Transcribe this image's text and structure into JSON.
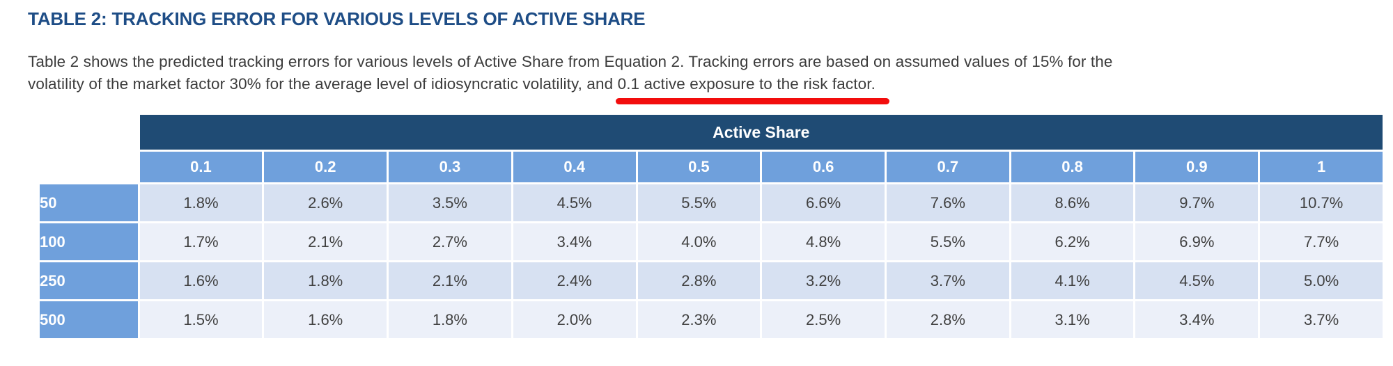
{
  "title": "TABLE 2: TRACKING ERROR FOR VARIOUS LEVELS OF ACTIVE SHARE",
  "paragraph": {
    "line1": "Table 2 shows the predicted tracking errors for various levels of Active Share from Equation 2. Tracking errors are based on assumed values of 15% for the",
    "line2_prefix": "volatility of the market factor 30% for the average level of idiosyncratic volatility, and ",
    "line2_underlined": "0.1 active exposure to the risk factor."
  },
  "annotation": {
    "type": "hand-drawn red underline",
    "color": "#f20d0d"
  },
  "table": {
    "group_header": "Active Share",
    "column_headers": [
      "0.1",
      "0.2",
      "0.3",
      "0.4",
      "0.5",
      "0.6",
      "0.7",
      "0.8",
      "0.9",
      "1"
    ],
    "rows": [
      {
        "label": "50",
        "values": [
          "1.8%",
          "2.6%",
          "3.5%",
          "4.5%",
          "5.5%",
          "6.6%",
          "7.6%",
          "8.6%",
          "9.7%",
          "10.7%"
        ]
      },
      {
        "label": "100",
        "values": [
          "1.7%",
          "2.1%",
          "2.7%",
          "3.4%",
          "4.0%",
          "4.8%",
          "5.5%",
          "6.2%",
          "6.9%",
          "7.7%"
        ]
      },
      {
        "label": "250",
        "values": [
          "1.6%",
          "1.8%",
          "2.1%",
          "2.4%",
          "2.8%",
          "3.2%",
          "3.7%",
          "4.1%",
          "4.5%",
          "5.0%"
        ]
      },
      {
        "label": "500",
        "values": [
          "1.5%",
          "1.6%",
          "1.8%",
          "2.0%",
          "2.3%",
          "2.5%",
          "2.8%",
          "3.1%",
          "3.4%",
          "3.7%"
        ]
      }
    ]
  },
  "colors": {
    "heading_text": "#1e4d86",
    "body_text": "#3c3c3c",
    "table_group_header_bg": "#1f4b74",
    "table_header_bg": "#6fa0dc",
    "row_light_blue": "#d7e1f2",
    "row_lighter_blue": "#ecf0f9",
    "annotation_red": "#f20d0d"
  }
}
